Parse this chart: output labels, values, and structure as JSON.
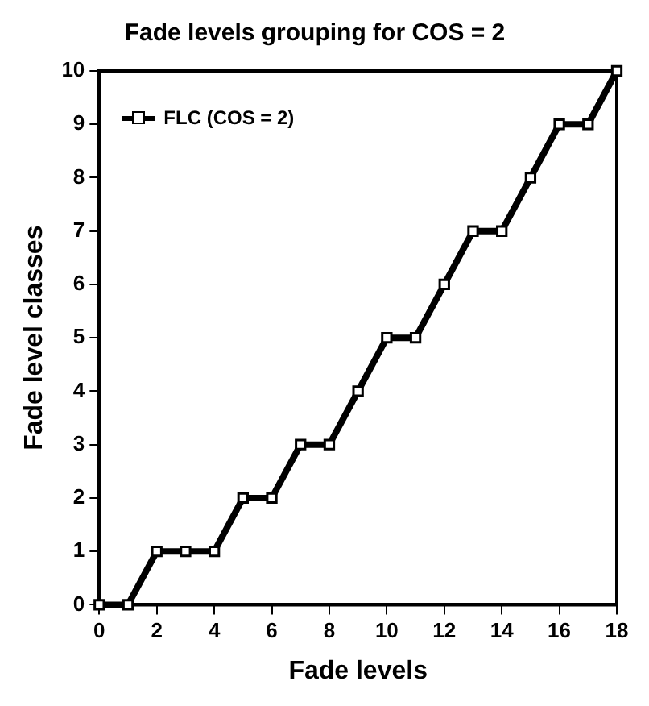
{
  "chart_data": {
    "type": "line",
    "title": "Fade levels grouping for COS = 2",
    "xlabel": "Fade levels",
    "ylabel": "Fade level classes",
    "x": [
      0,
      1,
      2,
      3,
      4,
      5,
      6,
      7,
      8,
      9,
      10,
      11,
      12,
      13,
      14,
      15,
      16,
      17,
      18
    ],
    "series": [
      {
        "name": "FLC (COS = 2)",
        "color": "#000000",
        "values": [
          0,
          0,
          1,
          1,
          1,
          2,
          2,
          3,
          3,
          4,
          5,
          5,
          6,
          7,
          7,
          8,
          9,
          9,
          10
        ]
      }
    ],
    "xlim": [
      0,
      18
    ],
    "xticks": [
      0,
      2,
      4,
      6,
      8,
      10,
      12,
      14,
      16,
      18
    ],
    "ylim": [
      0,
      10
    ],
    "yticks": [
      0,
      1,
      2,
      3,
      4,
      5,
      6,
      7,
      8,
      9,
      10
    ],
    "grid": false,
    "legend": "top left",
    "marker": "square",
    "line_style": "solid"
  }
}
